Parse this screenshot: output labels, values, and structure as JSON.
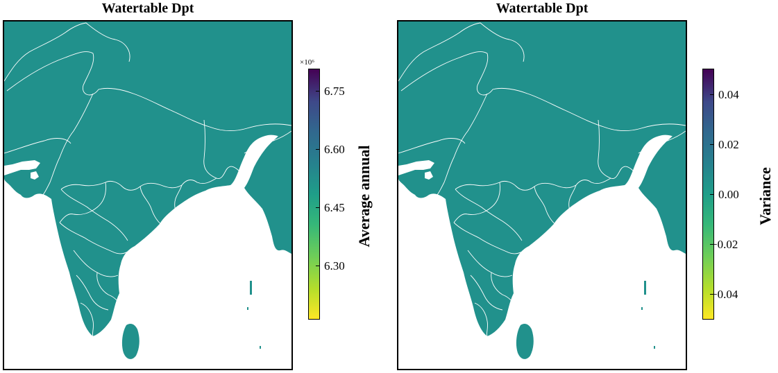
{
  "panels": [
    {
      "title": "Watertable Dpt",
      "land_color": "#21918c",
      "colorbar": {
        "label": "Average annual",
        "scale_exponent": "×10⁶",
        "range": [
          6.16,
          6.8
        ],
        "ticks": [
          "6.75",
          "6.60",
          "6.45",
          "6.30"
        ],
        "tick_values": [
          6.75,
          6.6,
          6.45,
          6.3
        ],
        "colormap": "viridis"
      }
    },
    {
      "title": "Watertable Dpt",
      "land_color": "#21918c",
      "colorbar": {
        "label": "Variance",
        "range": [
          -0.05,
          0.05
        ],
        "ticks": [
          "0.04",
          "0.02",
          "0.00",
          "−0.02",
          "−0.04"
        ],
        "tick_values": [
          0.04,
          0.02,
          0.0,
          -0.02,
          -0.04
        ],
        "colormap": "viridis"
      }
    }
  ]
}
